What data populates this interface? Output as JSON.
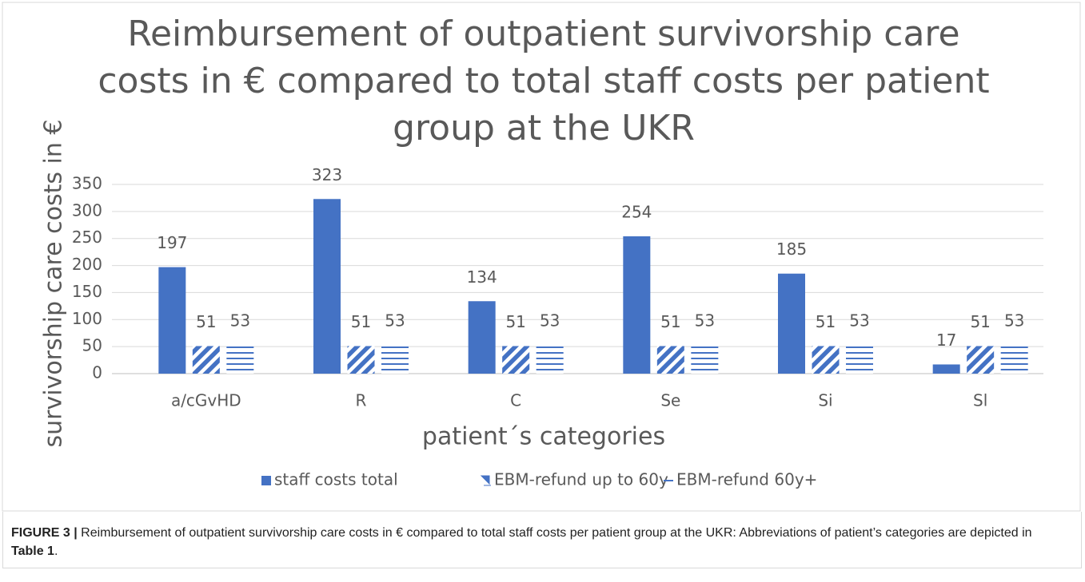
{
  "chart_data": {
    "type": "bar",
    "title": [
      "Reimbursement of outpatient survivorship care",
      "costs in € compared to total staff costs per patient",
      "group at the UKR"
    ],
    "ylabel": "survivorship care costs in €",
    "xlabel": "patient´s categories",
    "categories": [
      "a/cGvHD",
      "R",
      "C",
      "Se",
      "Si",
      "Sl"
    ],
    "series": [
      {
        "name": "staff costs total",
        "color": "#4472c4",
        "pattern": "solid",
        "values": [
          197,
          323,
          134,
          254,
          185,
          17
        ]
      },
      {
        "name": "EBM-refund up to 60y",
        "color": "#4472c4",
        "pattern": "diagonal",
        "values": [
          51,
          51,
          51,
          51,
          51,
          51
        ]
      },
      {
        "name": "EBM-refund 60y+",
        "color": "#4472c4",
        "pattern": "horizontal",
        "values": [
          53,
          53,
          53,
          53,
          53,
          53
        ]
      }
    ],
    "ylim": [
      0,
      350
    ],
    "yticks": [
      0,
      50,
      100,
      150,
      200,
      250,
      300,
      350
    ],
    "grid": true,
    "legend": "bottom"
  },
  "caption": {
    "label": "FIGURE 3 |",
    "text": " Reimbursement of outpatient survivorship care costs in € compared to total staff costs per patient group at the UKR: Abbreviations of patient’s categories are depicted in ",
    "ref": "Table 1",
    "end": "."
  }
}
